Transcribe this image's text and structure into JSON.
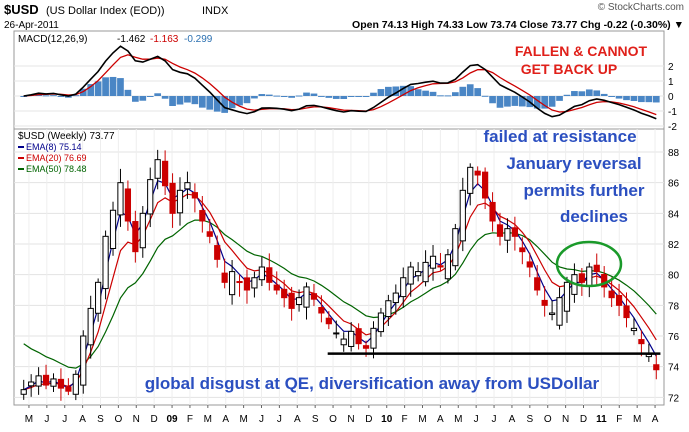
{
  "header": {
    "symbol": "$USD",
    "name": "(US Dollar Index (EOD))",
    "exchange": "INDX",
    "date": "26-Apr-2011",
    "source": "© StockCharts.com",
    "quote": "Open 74.13  High 74.33  Low 73.74  Close 73.77  Chg -0.22 (-0.30%) ▼"
  },
  "macd_panel": {
    "legend_prefix": "MACD(12,26,9)",
    "macd": "-1.462",
    "signal": "-1.163",
    "histogram": "-0.299",
    "y_ticks": [
      "2",
      "1",
      "0",
      "-1",
      "-2"
    ],
    "annotation_line1": "FALLEN & CANNOT",
    "annotation_line2": "GET BACK UP"
  },
  "price_panel": {
    "legend_title": "$USD (Weekly) 73.77",
    "ema8_label": "EMA(8) 75.14",
    "ema20_label": "EMA(20) 76.69",
    "ema50_label": "EMA(50) 78.48",
    "y_ticks": [
      "88",
      "86",
      "84",
      "82",
      "80",
      "78",
      "76",
      "74",
      "72"
    ],
    "annotation_right_lines": [
      "failed at resistance",
      "January reversal",
      "permits further",
      "declines"
    ],
    "annotation_bottom": "global disgust at QE, diversification away from USDollar"
  },
  "x_axis": {
    "labels": [
      "M",
      "J",
      "J",
      "A",
      "S",
      "O",
      "N",
      "D",
      "09",
      "F",
      "M",
      "A",
      "M",
      "J",
      "J",
      "A",
      "S",
      "O",
      "N",
      "D",
      "10",
      "F",
      "M",
      "A",
      "M",
      "J",
      "J",
      "A",
      "S",
      "O",
      "N",
      "D",
      "11",
      "F",
      "M",
      "A"
    ]
  },
  "colors": {
    "up_candle": "#000000",
    "down_candle": "#cc0000",
    "ema8": "#00008b",
    "ema20": "#cc0000",
    "ema50": "#006400",
    "macd_line": "#000000",
    "signal_line": "#cc0000",
    "histogram": "#4a86c5",
    "annotation_red": "#e0201a",
    "annotation_blue": "#2b4fc0",
    "circle": "#1a9a2a",
    "support_line": "#000000"
  },
  "chart_data": {
    "type": "candlestick",
    "period": "weekly",
    "y_range": [
      71.5,
      89.5
    ],
    "support_level": 74.85,
    "support_span": [
      "2009-10",
      "2011-04"
    ],
    "resistance_highlight_span": [
      "2010-12",
      "2011-01"
    ],
    "months": [
      "2008-05",
      "2008-06",
      "2008-07",
      "2008-08",
      "2008-09",
      "2008-10",
      "2008-11",
      "2008-12",
      "2009-01",
      "2009-02",
      "2009-03",
      "2009-04",
      "2009-05",
      "2009-06",
      "2009-07",
      "2009-08",
      "2009-09",
      "2009-10",
      "2009-11",
      "2009-12",
      "2010-01",
      "2010-02",
      "2010-03",
      "2010-04",
      "2010-05",
      "2010-06",
      "2010-07",
      "2010-08",
      "2010-09",
      "2010-10",
      "2010-11",
      "2010-12",
      "2011-01",
      "2011-02",
      "2011-03",
      "2011-04"
    ],
    "close_path": [
      72.5,
      73,
      73.4,
      72.8,
      73.2,
      72.6,
      72.4,
      73.5,
      76,
      77.8,
      79.5,
      82.5,
      84.2,
      86,
      83.5,
      81.5,
      84,
      86.2,
      87.5,
      85.8,
      84,
      85.5,
      86,
      85,
      83.5,
      82.5,
      81,
      79.5,
      80.2,
      79.5,
      79,
      79.8,
      80.5,
      79.5,
      79,
      78.5,
      77.8,
      78.5,
      79.2,
      78.4,
      77.5,
      76.8,
      76.2,
      75.8,
      76.3,
      75.5,
      75.2,
      76.5,
      77.5,
      78.3,
      78.8,
      79.8,
      80.5,
      80.2,
      80.8,
      81.2,
      80.5,
      81.3,
      83,
      85.5,
      87,
      86.5,
      85,
      83.5,
      82.5,
      83,
      82.5,
      81.5,
      80.5,
      79,
      78,
      77.5,
      78.5,
      79.5,
      80,
      79.5,
      80.5,
      80.2,
      79.2,
      78.5,
      78,
      77.2,
      76.5,
      75.5,
      74.8,
      73.8
    ],
    "macd_signal_description": "MACD peaks near 2 in late 2008 and mid-2010, troughs near -2 in late 2009, ends at -1.462 in April 2011",
    "legend": [
      "EMA(8) 75.14",
      "EMA(20) 76.69",
      "EMA(50) 78.48"
    ]
  }
}
